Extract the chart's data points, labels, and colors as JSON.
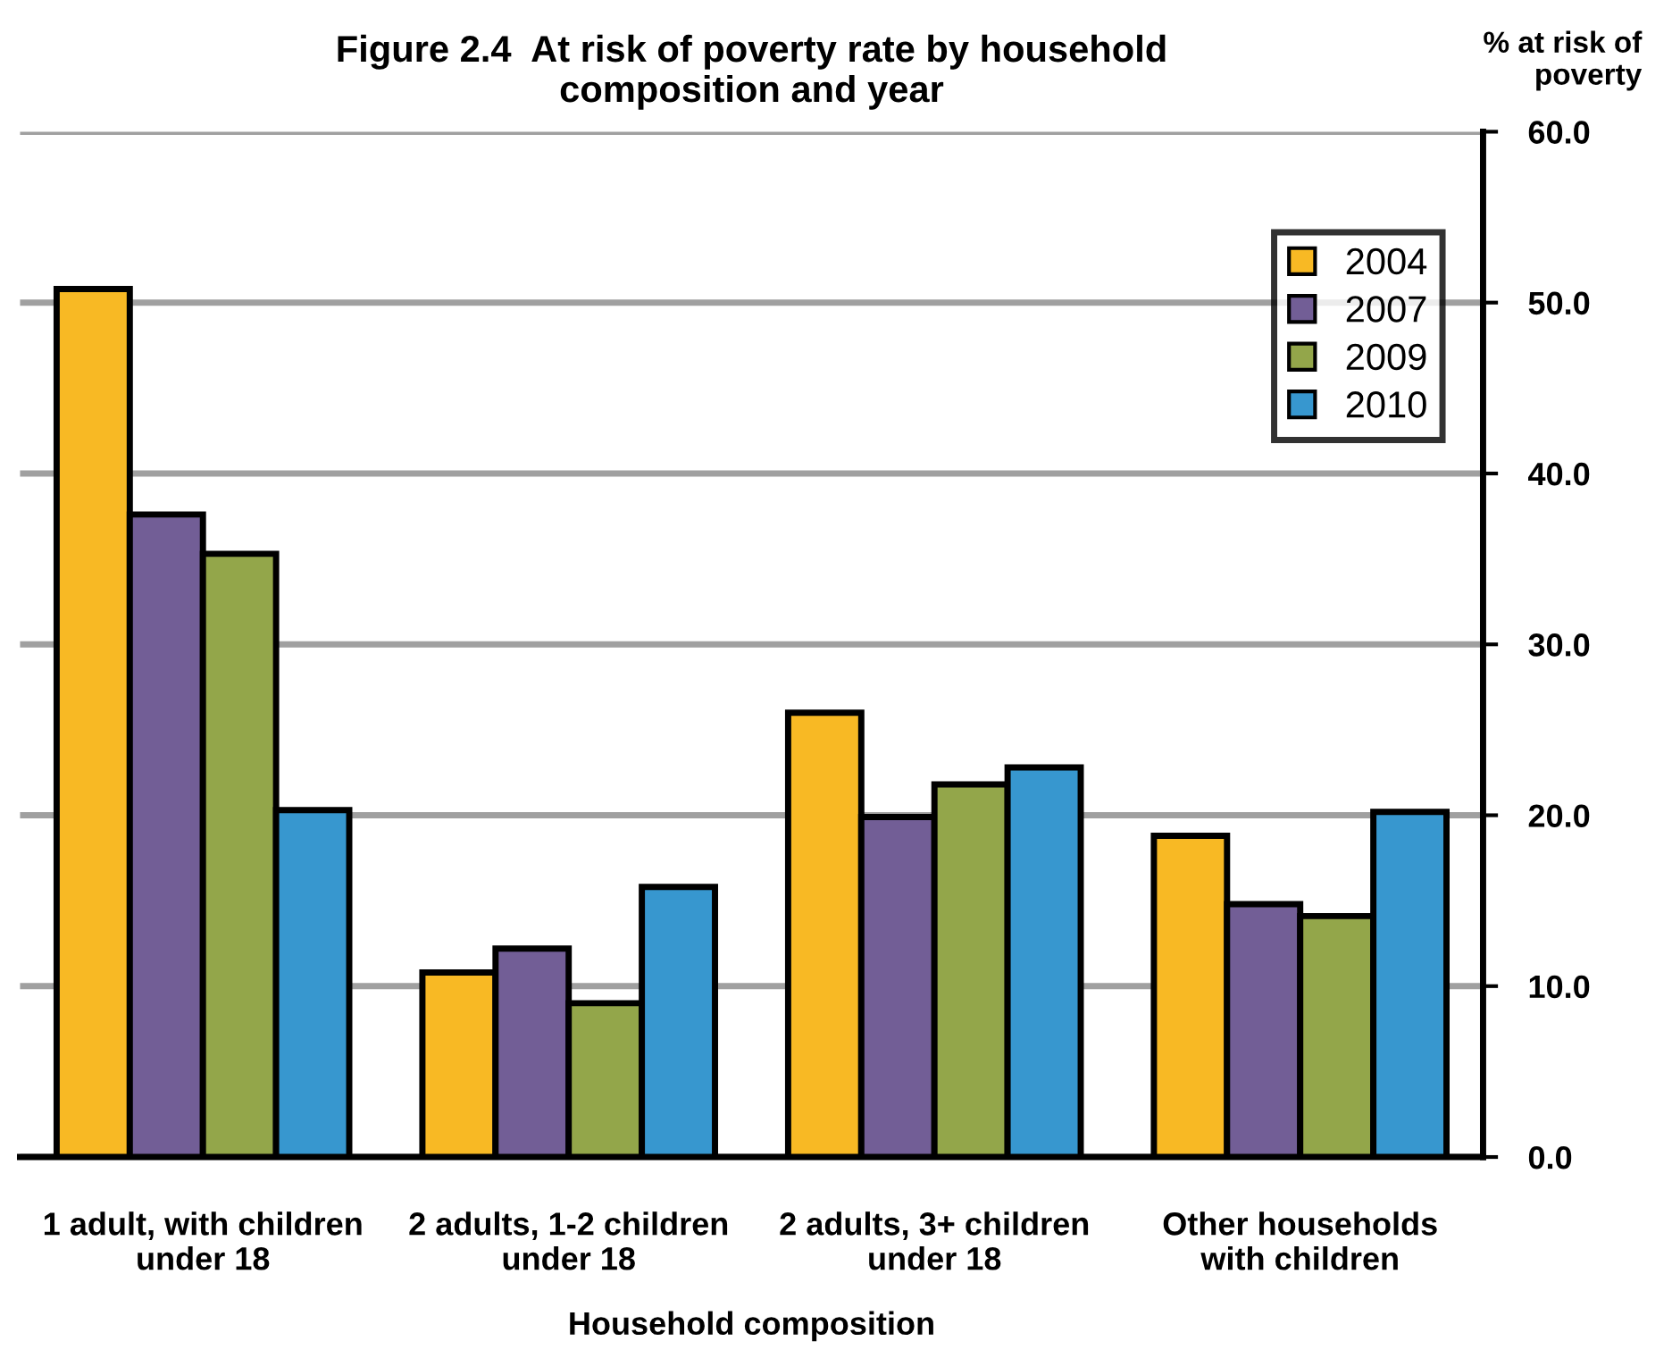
{
  "chart_data": {
    "type": "bar",
    "title": "Figure 2.4  At risk of poverty rate by household\ncomposition and year",
    "xlabel": "Household composition",
    "ylabel": "% at risk of\npoverty",
    "categories": [
      "1 adult, with children\nunder 18",
      "2 adults, 1-2 children\nunder 18",
      "2 adults, 3+ children\nunder 18",
      "Other households\nwith children"
    ],
    "series": [
      {
        "name": "2004",
        "color": "#f8b924",
        "values": [
          50.8,
          10.8,
          26.0,
          18.8
        ]
      },
      {
        "name": "2007",
        "color": "#725e96",
        "values": [
          37.6,
          12.2,
          19.9,
          14.8
        ]
      },
      {
        "name": "2009",
        "color": "#93a64a",
        "values": [
          35.3,
          9.0,
          21.8,
          14.1
        ]
      },
      {
        "name": "2010",
        "color": "#3797cf",
        "values": [
          20.3,
          15.8,
          22.8,
          20.2
        ]
      }
    ],
    "ylim": [
      0,
      60
    ],
    "yticks": [
      {
        "value": 0,
        "label": "0.0"
      },
      {
        "value": 10,
        "label": "10.0"
      },
      {
        "value": 20,
        "label": "20.0"
      },
      {
        "value": 30,
        "label": "30.0"
      },
      {
        "value": 40,
        "label": "40.0"
      },
      {
        "value": 50,
        "label": "50.0"
      },
      {
        "value": 60,
        "label": "60.0"
      }
    ],
    "grid": "y",
    "legend": "top right"
  }
}
